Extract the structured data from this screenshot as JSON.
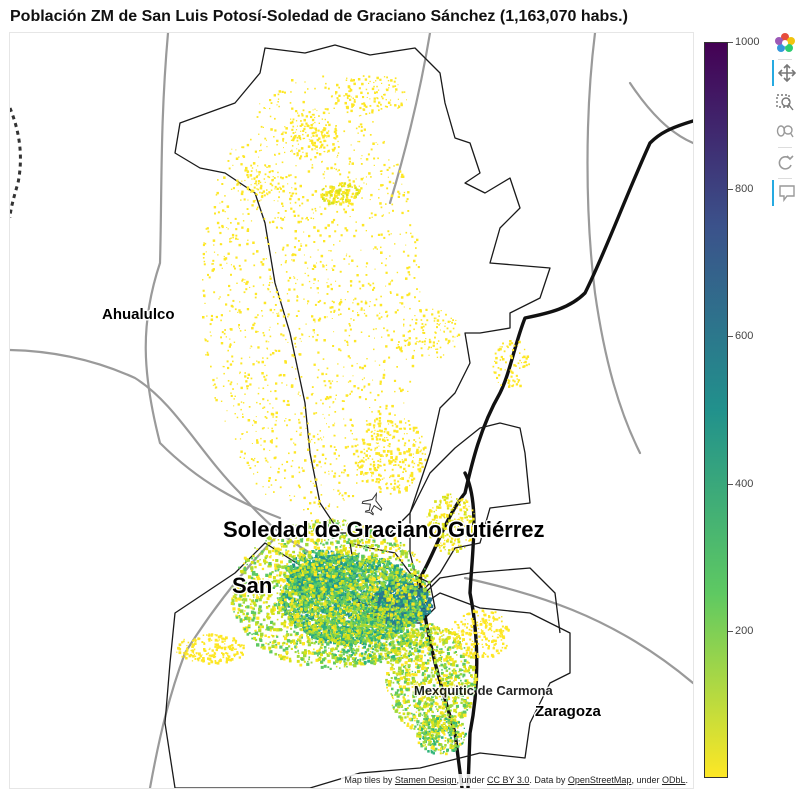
{
  "title": "Población ZM de San Luis Potosí-Soledad de Graciano Sánchez (1,163,070 habs.)",
  "places": [
    {
      "label": "Ahualulco"
    },
    {
      "label": "Soledad de Graciano Gutiérrez"
    },
    {
      "label": "San"
    },
    {
      "label": "Zaragoza"
    },
    {
      "label": "Mexquitic de Carmona"
    }
  ],
  "colorbar": {
    "min": 0,
    "max": 1000,
    "ticks": [
      "1000",
      "800",
      "600",
      "400",
      "200"
    ],
    "palette": "viridis-reversed",
    "colors": [
      "#440154",
      "#3b528b",
      "#21918c",
      "#5ec962",
      "#fde725"
    ]
  },
  "attribution": {
    "prefix": "Map tiles by ",
    "stamen": "Stamen Design",
    "mid1": ", under ",
    "ccby": "CC BY 3.0",
    "mid2": ". Data by ",
    "osm": "OpenStreetMap",
    "mid3": ", under ",
    "odbl": "ODbL",
    "end": "."
  },
  "toolbar": {
    "tools": [
      "bokeh-logo-icon",
      "pan-icon",
      "box-zoom-icon",
      "wheel-zoom-icon",
      "reset-icon",
      "hover-icon"
    ]
  }
}
